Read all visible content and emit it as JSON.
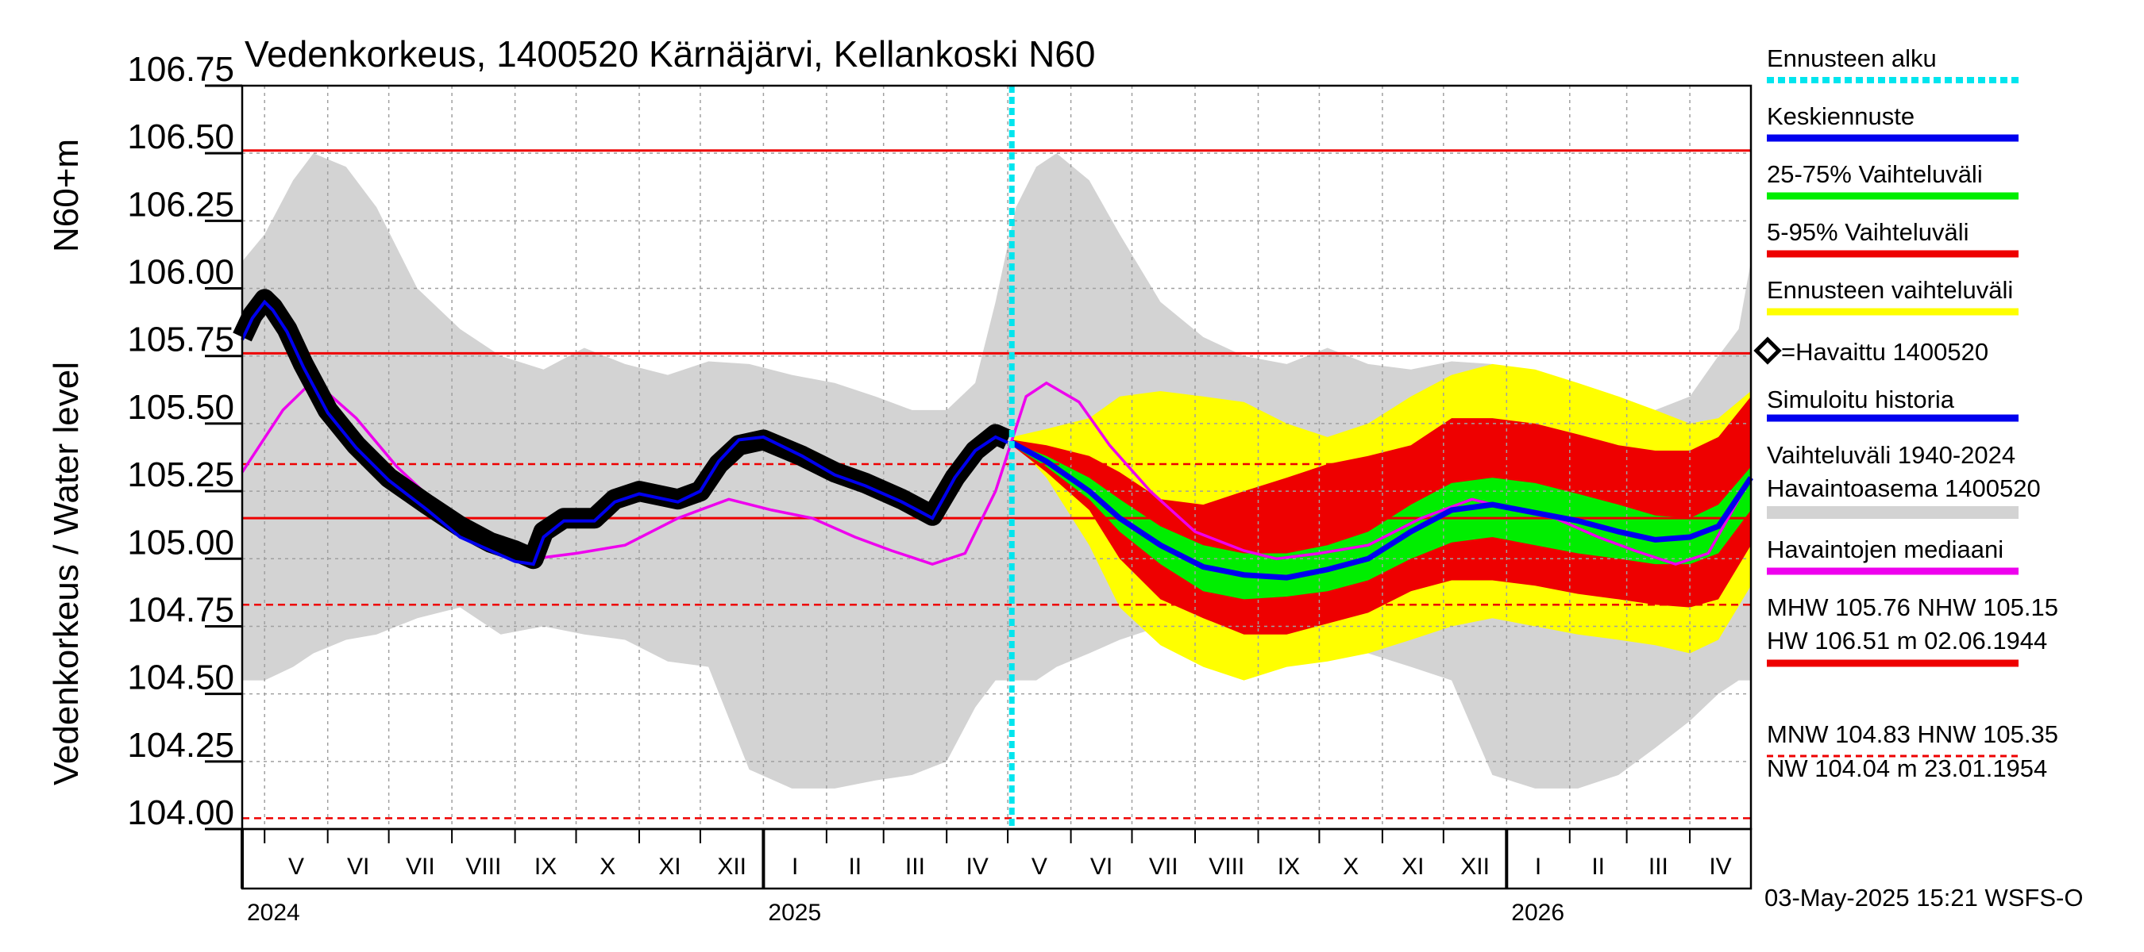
{
  "chart_data": {
    "type": "line",
    "title": "Vedenkorkeus, 1400520 Kärnäjärvi, Kellankoski N60",
    "ylabel": "Vedenkorkeus / Water level",
    "ylabel_unit": "N60+m",
    "ylim": [
      104.0,
      106.75
    ],
    "yticks": [
      "106.75",
      "106.50",
      "106.25",
      "106.00",
      "105.75",
      "105.50",
      "105.25",
      "105.00",
      "104.75",
      "104.50",
      "104.25",
      "104.00"
    ],
    "x_start": "2024-04-20",
    "x_end": "2026-05-01",
    "forecast_start": "2025-05-03",
    "months": [
      {
        "label": "V",
        "start": "2024-05-01"
      },
      {
        "label": "VI",
        "start": "2024-06-01"
      },
      {
        "label": "VII",
        "start": "2024-07-01"
      },
      {
        "label": "VIII",
        "start": "2024-08-01"
      },
      {
        "label": "IX",
        "start": "2024-09-01"
      },
      {
        "label": "X",
        "start": "2024-10-01"
      },
      {
        "label": "XI",
        "start": "2024-11-01"
      },
      {
        "label": "XII",
        "start": "2024-12-01"
      },
      {
        "label": "I",
        "start": "2025-01-01"
      },
      {
        "label": "II",
        "start": "2025-02-01"
      },
      {
        "label": "III",
        "start": "2025-03-01"
      },
      {
        "label": "IV",
        "start": "2025-04-01"
      },
      {
        "label": "V",
        "start": "2025-05-01"
      },
      {
        "label": "VI",
        "start": "2025-06-01"
      },
      {
        "label": "VII",
        "start": "2025-07-01"
      },
      {
        "label": "VIII",
        "start": "2025-08-01"
      },
      {
        "label": "IX",
        "start": "2025-09-01"
      },
      {
        "label": "X",
        "start": "2025-10-01"
      },
      {
        "label": "XI",
        "start": "2025-11-01"
      },
      {
        "label": "XII",
        "start": "2025-12-01"
      },
      {
        "label": "I",
        "start": "2026-01-01"
      },
      {
        "label": "II",
        "start": "2026-02-01"
      },
      {
        "label": "III",
        "start": "2026-03-01"
      },
      {
        "label": "IV",
        "start": "2026-04-01"
      }
    ],
    "years": [
      {
        "label": "2024",
        "start": "2024-04-20"
      },
      {
        "label": "2025",
        "start": "2025-01-01"
      },
      {
        "label": "2026",
        "start": "2026-01-01"
      }
    ],
    "reference_lines": [
      {
        "name": "HW",
        "value": 106.51,
        "style": "solid"
      },
      {
        "name": "MHW",
        "value": 105.76,
        "style": "solid"
      },
      {
        "name": "NHW",
        "value": 105.15,
        "style": "solid"
      },
      {
        "name": "HNW",
        "value": 105.35,
        "style": "dashed"
      },
      {
        "name": "MNW",
        "value": 104.83,
        "style": "dashed"
      },
      {
        "name": "NW",
        "value": 104.04,
        "style": "dashed"
      }
    ],
    "series": [
      {
        "name": "Vaihteluväli 1940-2024 Havaintoasema 1400520",
        "kind": "band",
        "x": [
          "2024-04-20",
          "2024-05-01",
          "2024-05-15",
          "2024-05-25",
          "2024-06-10",
          "2024-06-25",
          "2024-07-15",
          "2024-08-05",
          "2024-08-25",
          "2024-09-15",
          "2024-10-05",
          "2024-10-25",
          "2024-11-15",
          "2024-12-05",
          "2024-12-25",
          "2025-01-15",
          "2025-02-05",
          "2025-02-25",
          "2025-03-15",
          "2025-04-01",
          "2025-04-15",
          "2025-04-25",
          "2025-05-05",
          "2025-05-15",
          "2025-05-25",
          "2025-06-10",
          "2025-06-25",
          "2025-07-15",
          "2025-08-05",
          "2025-08-25",
          "2025-09-15",
          "2025-10-05",
          "2025-10-25",
          "2025-11-15",
          "2025-12-05",
          "2025-12-25",
          "2026-01-15",
          "2026-02-05",
          "2026-02-25",
          "2026-03-15",
          "2026-04-01",
          "2026-04-15",
          "2026-04-25",
          "2026-05-01"
        ],
        "low": [
          104.55,
          104.55,
          104.6,
          104.65,
          104.7,
          104.72,
          104.78,
          104.82,
          104.72,
          104.75,
          104.72,
          104.7,
          104.62,
          104.6,
          104.22,
          104.15,
          104.15,
          104.18,
          104.2,
          104.25,
          104.45,
          104.55,
          104.55,
          104.55,
          104.6,
          104.65,
          104.7,
          104.75,
          104.78,
          104.75,
          104.7,
          104.68,
          104.65,
          104.6,
          104.55,
          104.2,
          104.15,
          104.15,
          104.2,
          104.3,
          104.4,
          104.5,
          104.55,
          104.55
        ],
        "high": [
          106.1,
          106.2,
          106.4,
          106.5,
          106.45,
          106.3,
          106.0,
          105.85,
          105.75,
          105.7,
          105.78,
          105.72,
          105.68,
          105.73,
          105.72,
          105.68,
          105.65,
          105.6,
          105.55,
          105.55,
          105.65,
          105.95,
          106.3,
          106.45,
          106.5,
          106.4,
          106.2,
          105.95,
          105.82,
          105.75,
          105.72,
          105.78,
          105.72,
          105.7,
          105.73,
          105.72,
          105.68,
          105.62,
          105.55,
          105.55,
          105.6,
          105.75,
          105.85,
          106.1
        ]
      },
      {
        "name": "Ennusteen vaihteluväli",
        "kind": "band",
        "x": [
          "2025-05-03",
          "2025-05-20",
          "2025-06-10",
          "2025-06-25",
          "2025-07-15",
          "2025-08-05",
          "2025-08-25",
          "2025-09-15",
          "2025-10-05",
          "2025-10-25",
          "2025-11-15",
          "2025-12-05",
          "2025-12-25",
          "2026-01-15",
          "2026-02-05",
          "2026-02-25",
          "2026-03-15",
          "2026-04-01",
          "2026-04-15",
          "2026-05-01"
        ],
        "low": [
          105.44,
          105.3,
          105.05,
          104.82,
          104.68,
          104.6,
          104.55,
          104.6,
          104.62,
          104.65,
          104.7,
          104.75,
          104.78,
          104.75,
          104.72,
          104.7,
          104.68,
          104.65,
          104.7,
          104.9
        ],
        "high": [
          105.45,
          105.48,
          105.52,
          105.6,
          105.62,
          105.6,
          105.58,
          105.5,
          105.45,
          105.5,
          105.6,
          105.68,
          105.72,
          105.7,
          105.65,
          105.6,
          105.55,
          105.5,
          105.52,
          105.62
        ]
      },
      {
        "name": "5-95% Vaihteluväli",
        "kind": "band",
        "x": [
          "2025-05-03",
          "2025-05-20",
          "2025-06-10",
          "2025-06-25",
          "2025-07-15",
          "2025-08-05",
          "2025-08-25",
          "2025-09-15",
          "2025-10-05",
          "2025-10-25",
          "2025-11-15",
          "2025-12-05",
          "2025-12-25",
          "2026-01-15",
          "2026-02-05",
          "2026-02-25",
          "2026-03-15",
          "2026-04-01",
          "2026-04-15",
          "2026-05-01"
        ],
        "low": [
          105.42,
          105.32,
          105.18,
          105.0,
          104.85,
          104.78,
          104.72,
          104.72,
          104.76,
          104.8,
          104.88,
          104.92,
          104.92,
          104.9,
          104.87,
          104.85,
          104.83,
          104.82,
          104.85,
          105.05
        ],
        "high": [
          105.44,
          105.42,
          105.38,
          105.32,
          105.22,
          105.2,
          105.25,
          105.3,
          105.35,
          105.38,
          105.42,
          105.52,
          105.52,
          105.5,
          105.46,
          105.42,
          105.4,
          105.4,
          105.45,
          105.6
        ]
      },
      {
        "name": "25-75% Vaihteluväli",
        "kind": "band",
        "x": [
          "2025-05-03",
          "2025-05-20",
          "2025-06-10",
          "2025-06-25",
          "2025-07-15",
          "2025-08-05",
          "2025-08-25",
          "2025-09-15",
          "2025-10-05",
          "2025-10-25",
          "2025-11-15",
          "2025-12-05",
          "2025-12-25",
          "2026-01-15",
          "2026-02-05",
          "2026-02-25",
          "2026-03-15",
          "2026-04-01",
          "2026-04-15",
          "2026-05-01"
        ],
        "low": [
          105.42,
          105.34,
          105.22,
          105.1,
          104.98,
          104.88,
          104.85,
          104.86,
          104.88,
          104.92,
          105.0,
          105.06,
          105.08,
          105.05,
          105.02,
          105.0,
          104.98,
          104.98,
          105.02,
          105.18
        ],
        "high": [
          105.43,
          105.38,
          105.3,
          105.22,
          105.12,
          105.05,
          105.02,
          105.02,
          105.05,
          105.1,
          105.2,
          105.28,
          105.3,
          105.28,
          105.24,
          105.2,
          105.16,
          105.15,
          105.2,
          105.34
        ]
      },
      {
        "name": "Havaintojen mediaani",
        "kind": "line",
        "x": [
          "2024-04-20",
          "2024-05-10",
          "2024-05-25",
          "2024-06-15",
          "2024-07-05",
          "2024-08-01",
          "2024-08-25",
          "2024-09-10",
          "2024-10-01",
          "2024-10-25",
          "2024-11-20",
          "2024-12-15",
          "2025-01-05",
          "2025-01-25",
          "2025-02-15",
          "2025-03-05",
          "2025-03-25",
          "2025-04-10",
          "2025-04-25",
          "2025-05-10",
          "2025-05-20",
          "2025-06-05",
          "2025-06-20",
          "2025-07-10",
          "2025-08-01",
          "2025-08-25",
          "2025-09-10",
          "2025-10-01",
          "2025-10-25",
          "2025-11-20",
          "2025-12-15",
          "2026-01-05",
          "2026-01-25",
          "2026-02-15",
          "2026-03-05",
          "2026-03-25",
          "2026-04-10",
          "2026-05-01"
        ],
        "y": [
          105.32,
          105.55,
          105.66,
          105.52,
          105.34,
          105.15,
          105.03,
          105.0,
          105.02,
          105.05,
          105.15,
          105.22,
          105.18,
          105.15,
          105.08,
          105.03,
          104.98,
          105.02,
          105.25,
          105.6,
          105.65,
          105.58,
          105.42,
          105.25,
          105.1,
          105.03,
          105.0,
          105.02,
          105.05,
          105.15,
          105.22,
          105.18,
          105.15,
          105.08,
          105.03,
          104.98,
          105.02,
          105.3
        ]
      },
      {
        "name": "Havaittu 1400520",
        "kind": "observed",
        "x": [
          "2024-04-20",
          "2024-04-25",
          "2024-05-01",
          "2024-05-05",
          "2024-05-12",
          "2024-05-20",
          "2024-06-01",
          "2024-06-15",
          "2024-07-01",
          "2024-07-20",
          "2024-08-05",
          "2024-08-20",
          "2024-09-01",
          "2024-09-10",
          "2024-09-15",
          "2024-09-25",
          "2024-10-10",
          "2024-10-20",
          "2024-11-01",
          "2024-11-20",
          "2024-12-01",
          "2024-12-10",
          "2024-12-20",
          "2025-01-01",
          "2025-01-20",
          "2025-02-05",
          "2025-02-20",
          "2025-03-10",
          "2025-03-20",
          "2025-03-25",
          "2025-04-05",
          "2025-04-15",
          "2025-04-25",
          "2025-05-01"
        ],
        "y": [
          105.82,
          105.9,
          105.96,
          105.93,
          105.85,
          105.72,
          105.55,
          105.42,
          105.3,
          105.2,
          105.12,
          105.06,
          105.03,
          105.0,
          105.1,
          105.15,
          105.15,
          105.22,
          105.25,
          105.22,
          105.25,
          105.35,
          105.42,
          105.44,
          105.38,
          105.32,
          105.28,
          105.22,
          105.18,
          105.16,
          105.3,
          105.4,
          105.46,
          105.44
        ]
      },
      {
        "name": "Simuloitu historia",
        "kind": "line",
        "x": [
          "2024-04-20",
          "2024-04-25",
          "2024-05-01",
          "2024-05-05",
          "2024-05-12",
          "2024-05-20",
          "2024-06-01",
          "2024-06-15",
          "2024-07-01",
          "2024-07-20",
          "2024-08-05",
          "2024-08-20",
          "2024-09-01",
          "2024-09-10",
          "2024-09-15",
          "2024-09-25",
          "2024-10-10",
          "2024-10-20",
          "2024-11-01",
          "2024-11-20",
          "2024-12-01",
          "2024-12-10",
          "2024-12-20",
          "2025-01-01",
          "2025-01-20",
          "2025-02-05",
          "2025-02-20",
          "2025-03-10",
          "2025-03-20",
          "2025-03-25",
          "2025-04-05",
          "2025-04-15",
          "2025-04-25",
          "2025-05-01"
        ],
        "y": [
          105.81,
          105.89,
          105.95,
          105.92,
          105.84,
          105.71,
          105.54,
          105.41,
          105.29,
          105.18,
          105.08,
          105.03,
          104.99,
          104.98,
          105.08,
          105.14,
          105.14,
          105.21,
          105.24,
          105.21,
          105.25,
          105.36,
          105.44,
          105.45,
          105.38,
          105.31,
          105.27,
          105.21,
          105.17,
          105.15,
          105.3,
          105.4,
          105.45,
          105.43
        ]
      },
      {
        "name": "Keskiennuste",
        "kind": "line",
        "x": [
          "2025-05-03",
          "2025-05-20",
          "2025-06-10",
          "2025-06-25",
          "2025-07-15",
          "2025-08-05",
          "2025-08-25",
          "2025-09-15",
          "2025-10-05",
          "2025-10-25",
          "2025-11-15",
          "2025-12-05",
          "2025-12-25",
          "2026-01-15",
          "2026-02-05",
          "2026-02-25",
          "2026-03-15",
          "2026-04-01",
          "2026-04-15",
          "2026-05-01"
        ],
        "y": [
          105.43,
          105.36,
          105.25,
          105.15,
          105.05,
          104.97,
          104.94,
          104.93,
          104.96,
          105.0,
          105.1,
          105.18,
          105.2,
          105.17,
          105.14,
          105.1,
          105.07,
          105.08,
          105.12,
          105.3
        ]
      }
    ],
    "legend": {
      "placement": "right",
      "items": [
        {
          "label": "Ennusteen alku",
          "color": "#00e5ee",
          "style": "dotted"
        },
        {
          "label": "Keskiennuste",
          "color": "#0000ee",
          "style": "solid"
        },
        {
          "label": "25-75% Vaihteluväli",
          "color": "#00ee00",
          "style": "solid"
        },
        {
          "label": "5-95% Vaihteluväli",
          "color": "#ee0000",
          "style": "solid"
        },
        {
          "label": "Ennusteen vaihteluväli",
          "color": "#ffff00",
          "style": "solid"
        },
        {
          "label": "=Havaittu 1400520",
          "color": "#000000",
          "style": "marker"
        },
        {
          "label": "Simuloitu historia",
          "color": "#0000ee",
          "style": "solid"
        },
        {
          "label": "Vaihteluväli 1940-2024",
          "label2": " Havaintoasema 1400520",
          "color": "#d3d3d3",
          "style": "solid"
        },
        {
          "label": "Havaintojen mediaani",
          "color": "#ee00ee",
          "style": "solid"
        },
        {
          "label": "MHW 105.76 NHW 105.15",
          "label2": "HW 106.51 m 02.06.1944",
          "color": "#ee0000",
          "style": "solid"
        },
        {
          "label": "MNW 104.83 HNW 105.35",
          "label2": "NW 104.04 m 23.01.1954",
          "color": "#ee0000",
          "style": "dashed"
        }
      ]
    },
    "footer": "03-May-2025 15:21 WSFS-O",
    "colors": {
      "band_history": "#d3d3d3",
      "forecast_range": "#ffff00",
      "p5_95": "#ee0000",
      "p25_75": "#00ee00",
      "median": "#ee00ee",
      "mean_forecast": "#0000ee",
      "sim_history": "#0000ee",
      "observed": "#000000",
      "reference": "#ee0000",
      "forecast_start": "#00e5ee",
      "grid": "#a0a0a0"
    }
  }
}
